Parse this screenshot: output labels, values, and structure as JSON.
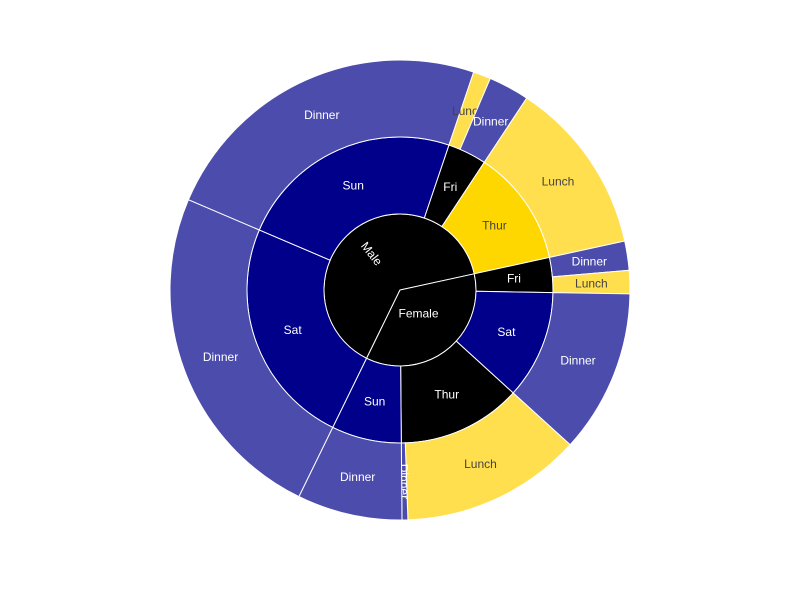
{
  "chart_data": {
    "type": "sunburst",
    "title": "",
    "colors": {
      "black": "#000000",
      "navy": "#00008b",
      "gold": "#ffd700",
      "gold_light": "#ffdf4d",
      "slate_blue": "#4c4cac"
    },
    "root_children": [
      {
        "label": "Male",
        "value": 157,
        "color": "black",
        "children": [
          {
            "label": "Sat",
            "value": 59,
            "color": "navy",
            "children": [
              {
                "label": "Dinner",
                "value": 59,
                "color": "slate_blue"
              }
            ]
          },
          {
            "label": "Sun",
            "value": 58,
            "color": "navy",
            "children": [
              {
                "label": "Dinner",
                "value": 58,
                "color": "slate_blue"
              }
            ]
          },
          {
            "label": "Fri",
            "value": 10,
            "color": "black",
            "children": [
              {
                "label": "Lunch",
                "value": 3,
                "color": "gold_light"
              },
              {
                "label": "Dinner",
                "value": 7,
                "color": "slate_blue"
              }
            ]
          },
          {
            "label": "Thur",
            "value": 30,
            "color": "gold",
            "children": [
              {
                "label": "Lunch",
                "value": 30,
                "color": "gold_light"
              }
            ]
          }
        ]
      },
      {
        "label": "Female",
        "value": 87,
        "color": "black",
        "children": [
          {
            "label": "Fri",
            "value": 9,
            "color": "black",
            "children": [
              {
                "label": "Dinner",
                "value": 5,
                "color": "slate_blue"
              },
              {
                "label": "Lunch",
                "value": 4,
                "color": "gold_light"
              }
            ]
          },
          {
            "label": "Sat",
            "value": 28,
            "color": "navy",
            "children": [
              {
                "label": "Dinner",
                "value": 28,
                "color": "slate_blue"
              }
            ]
          },
          {
            "label": "Thur",
            "value": 32,
            "color": "black",
            "children": [
              {
                "label": "Lunch",
                "value": 31,
                "color": "gold_light"
              },
              {
                "label": "Dinner",
                "value": 1,
                "color": "slate_blue"
              }
            ]
          },
          {
            "label": "Sun",
            "value": 18,
            "color": "navy",
            "children": [
              {
                "label": "Dinner",
                "value": 18,
                "color": "slate_blue"
              }
            ]
          }
        ]
      }
    ]
  }
}
